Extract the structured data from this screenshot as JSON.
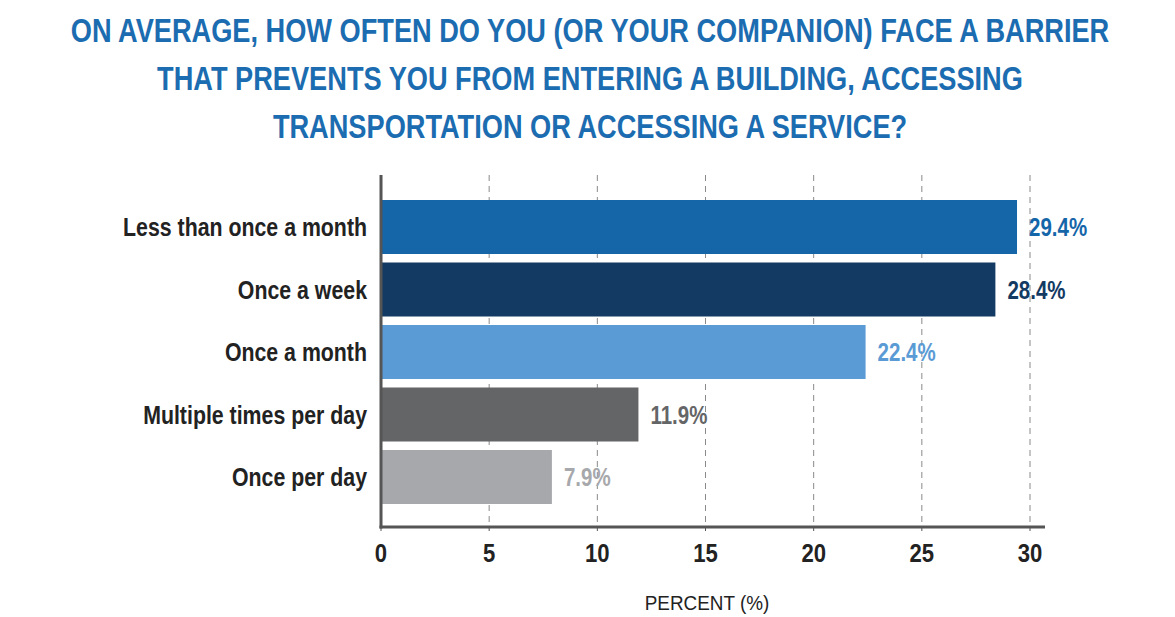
{
  "chart_data": {
    "type": "bar",
    "orientation": "horizontal",
    "title": "ON AVERAGE, HOW OFTEN DO YOU (OR YOUR COMPANION) FACE A BARRIER THAT PREVENTS YOU FROM ENTERING A BUILDING, ACCESSING TRANSPORTATION OR ACCESSING A SERVICE?",
    "categories": [
      "Less than once a month",
      "Once a week",
      "Once a month",
      "Multiple times per day",
      "Once per day"
    ],
    "values": [
      29.4,
      28.4,
      22.4,
      11.9,
      7.9
    ],
    "value_labels": [
      "29.4%",
      "28.4%",
      "22.4%",
      "11.9%",
      "7.9%"
    ],
    "colors": [
      "#1565a9",
      "#133a63",
      "#5b9bd5",
      "#646567",
      "#a7a8ab"
    ],
    "xlabel": "PERCENT (%)",
    "xlim": [
      0,
      30
    ],
    "xticks": [
      0,
      5,
      10,
      15,
      20,
      25,
      30
    ],
    "grid": true,
    "data_labels": true
  }
}
